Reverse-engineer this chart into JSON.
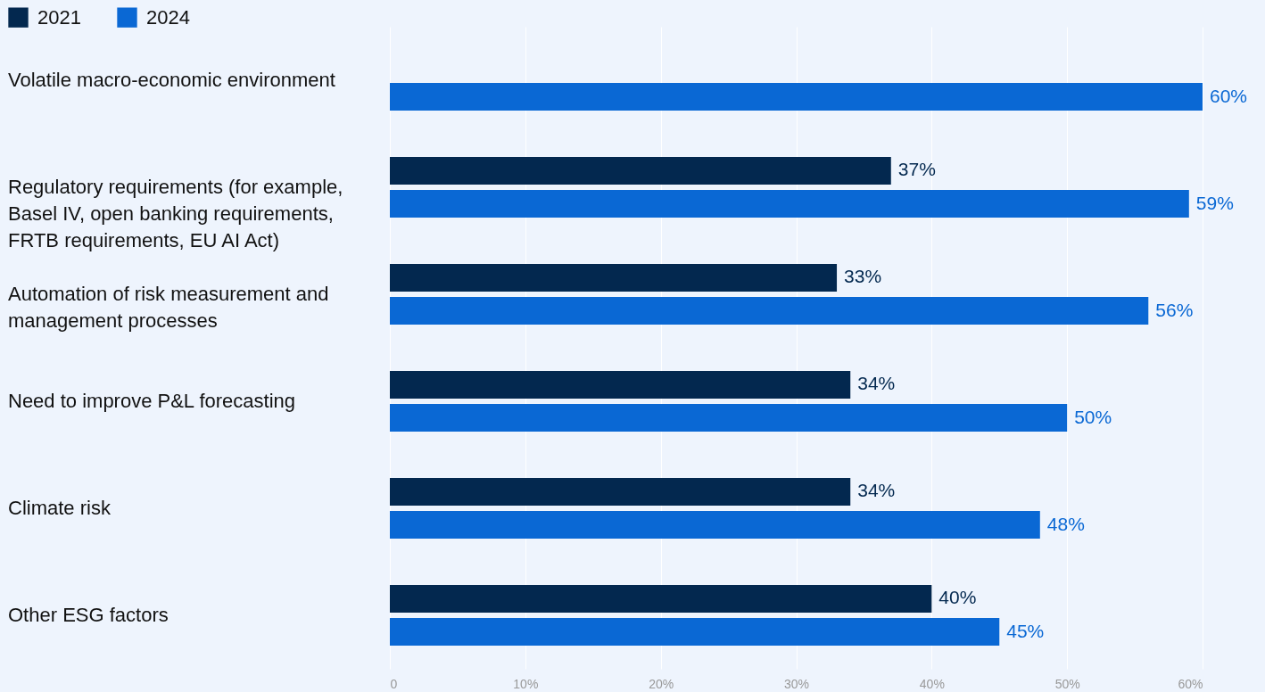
{
  "chart_data": {
    "type": "bar",
    "orientation": "horizontal",
    "categories": [
      "Volatile macro-economic environment",
      "Regulatory requirements (for example, Basel IV, open banking requirements, FRTB requirements, EU AI Act)",
      "Automation of risk measurement and management processes",
      "Need to improve P&L forecasting",
      "Climate risk",
      "Other ESG factors"
    ],
    "series": [
      {
        "name": "2021",
        "color": "#03284f",
        "values": [
          null,
          37,
          33,
          34,
          34,
          40
        ],
        "value_labels": [
          null,
          "37%",
          "33%",
          "34%",
          "34%",
          "40%"
        ]
      },
      {
        "name": "2024",
        "color": "#0a68d4",
        "values": [
          60,
          59,
          56,
          50,
          48,
          45
        ],
        "value_labels": [
          "60%",
          "59%",
          "56%",
          "50%",
          "48%",
          "45%"
        ]
      }
    ],
    "xlim": [
      0,
      60
    ],
    "xticks": [
      0,
      {
        "value": 10,
        "label": "10%"
      },
      {
        "value": 20,
        "label": "20%"
      },
      {
        "value": 30,
        "label": "30%"
      },
      {
        "value": 40,
        "label": "40%"
      },
      {
        "value": 50,
        "label": "50%"
      },
      {
        "value": 60,
        "label": "60%"
      }
    ],
    "grid": "x",
    "legend": "top left",
    "tick_labels": "x"
  }
}
